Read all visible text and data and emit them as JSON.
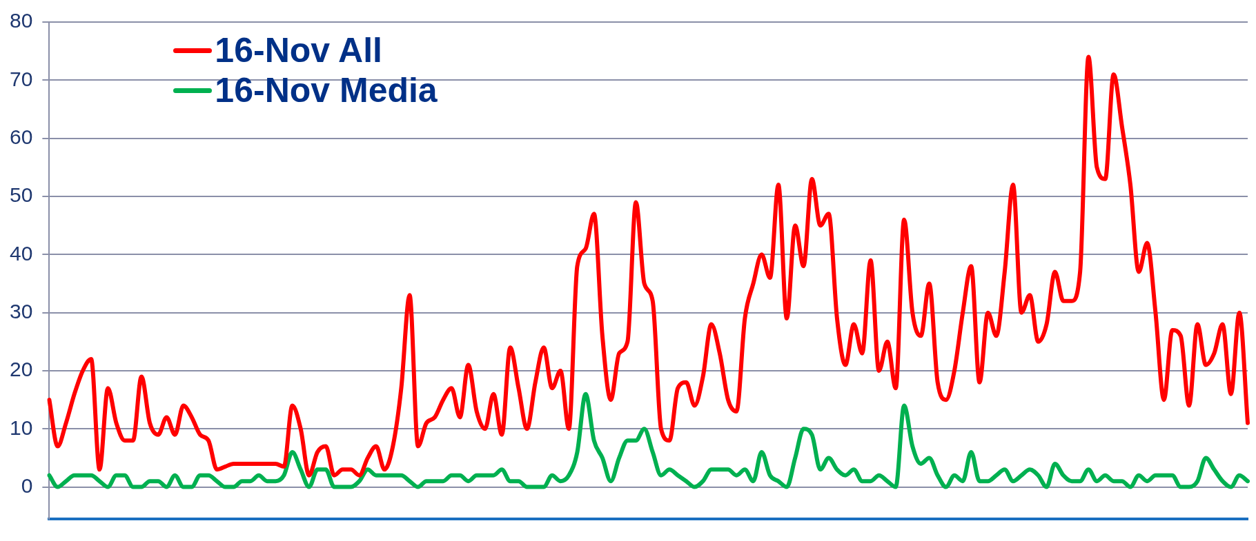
{
  "chart_data": {
    "type": "line",
    "categories": [
      null,
      null,
      null,
      null,
      null,
      null,
      null,
      null,
      null,
      null,
      null,
      null,
      null,
      null,
      null,
      null,
      null,
      null,
      null,
      null,
      null,
      null,
      null,
      null,
      null,
      null,
      null,
      null,
      null,
      null,
      null,
      null,
      null,
      null,
      null,
      null,
      null,
      null,
      null,
      null,
      null,
      null,
      null,
      null,
      null,
      null,
      null,
      null,
      null,
      null,
      null,
      null,
      null,
      null,
      null,
      null,
      null,
      null,
      null,
      null,
      null,
      null,
      null,
      null,
      null,
      null,
      null,
      null,
      null,
      null,
      null,
      null,
      null,
      null,
      null,
      null,
      null,
      null,
      null,
      null,
      null,
      null,
      null,
      null,
      null,
      null,
      null,
      null,
      null,
      null,
      null,
      null,
      null,
      null,
      null,
      null,
      null,
      null,
      null,
      null,
      null,
      null,
      null,
      null,
      null,
      null,
      null,
      null,
      null,
      null,
      null,
      null,
      null,
      null,
      null,
      null,
      null,
      null,
      null,
      null,
      null,
      null,
      null,
      null,
      null,
      null,
      null,
      null,
      null,
      null,
      null,
      null,
      null,
      null,
      null,
      null,
      null,
      null,
      null,
      null,
      null,
      null,
      null,
      null
    ],
    "series": [
      {
        "name": "16-Nov All",
        "color": "#ff0000",
        "values": [
          15,
          7,
          11,
          16,
          20,
          22,
          3,
          17,
          11,
          8,
          8,
          19,
          11,
          9,
          12,
          9,
          14,
          12,
          9,
          8,
          3,
          3.5,
          4,
          4,
          4,
          4,
          4,
          4,
          3.5,
          14,
          10,
          2,
          6,
          7,
          2,
          3,
          3,
          2,
          5,
          7,
          3,
          7,
          17,
          33,
          7,
          11,
          12,
          15,
          17,
          12,
          21,
          13,
          10,
          16,
          9,
          24,
          17,
          10,
          18,
          24,
          17,
          20,
          10,
          38,
          41,
          47,
          26,
          15,
          23,
          25,
          49,
          35,
          32,
          10,
          8,
          17,
          18,
          14,
          19,
          28,
          23,
          15,
          13,
          29,
          35,
          40,
          36,
          52,
          29,
          45,
          38,
          53,
          45,
          47,
          29,
          21,
          28,
          23,
          39,
          20,
          25,
          17,
          46,
          30,
          26,
          35,
          18,
          15,
          20,
          30,
          38,
          18,
          30,
          26,
          37,
          52,
          30,
          33,
          25,
          28,
          37,
          32,
          32,
          37,
          74,
          55,
          53,
          71,
          62,
          52,
          37,
          42,
          30,
          15,
          27,
          26,
          14,
          28,
          21,
          23,
          28,
          16,
          30,
          11
        ]
      },
      {
        "name": "16-Nov Media",
        "color": "#00b050",
        "values": [
          2,
          0,
          1,
          2,
          2,
          2,
          1,
          0,
          2,
          2,
          0,
          0,
          1,
          1,
          0,
          2,
          0,
          0,
          2,
          2,
          1,
          0,
          0,
          1,
          1,
          2,
          1,
          1,
          2,
          6,
          3,
          0,
          3,
          3,
          0,
          0,
          0,
          1,
          3,
          2,
          2,
          2,
          2,
          1,
          0,
          1,
          1,
          1,
          2,
          2,
          1,
          2,
          2,
          2,
          3,
          1,
          1,
          0,
          0,
          0,
          2,
          1,
          2,
          6,
          16,
          8,
          5,
          1,
          5,
          8,
          8,
          10,
          6,
          2,
          3,
          2,
          1,
          0,
          1,
          3,
          3,
          3,
          2,
          3,
          1,
          6,
          2,
          1,
          0,
          5,
          10,
          9,
          3,
          5,
          3,
          2,
          3,
          1,
          1,
          2,
          1,
          0,
          14,
          7,
          4,
          5,
          2,
          0,
          2,
          1,
          6,
          1,
          1,
          2,
          3,
          1,
          2,
          3,
          2,
          0,
          4,
          2,
          1,
          1,
          3,
          1,
          2,
          1,
          1,
          0,
          2,
          1,
          2,
          2,
          2,
          0,
          0,
          1,
          5,
          3,
          1,
          0,
          2,
          1
        ]
      }
    ],
    "ylim": [
      -5.5,
      80
    ],
    "yticks": [
      0,
      10,
      20,
      30,
      40,
      50,
      60,
      70,
      80
    ],
    "grid": "y",
    "legend": "top left",
    "tick_labels": "y"
  }
}
